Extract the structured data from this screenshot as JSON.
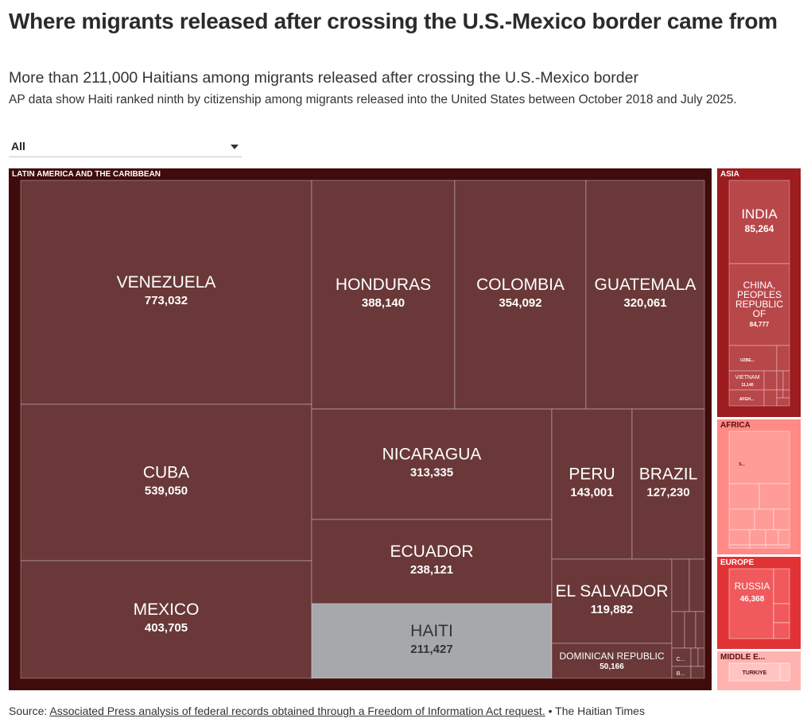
{
  "title": "Where migrants released after crossing the U.S.-Mexico border came from",
  "subtitle": "More than 211,000 Haitians among migrants released after crossing the U.S.-Mexico border",
  "description": "AP data show Haiti ranked ninth by citizenship among migrants released into the United States between October 2018 and July 2025.",
  "filter": {
    "selected": "All",
    "icon": "chevron-down-icon"
  },
  "footer": {
    "prefix": "Source: ",
    "link_text": "Associated Press analysis of federal records obtained through a Freedom of Information Act request.",
    "suffix": " • The Haitian Times"
  },
  "colors": {
    "latin_bg": "#3f0b0b",
    "latin_tile": "#6a3838",
    "highlight": "#a6a8ab",
    "asia_bg": "#9c1c1f",
    "asia_tile": "#b8474a",
    "africa_bg": "#ff8a86",
    "africa_tile": "#ff9c98",
    "europe_bg": "#e13336",
    "europe_tile": "#f05a5c",
    "middle_east_bg": "#ffb3b1",
    "middle_east_tile": "#ffc4c2"
  },
  "chart_data": {
    "type": "treemap",
    "highlight": "HAITI",
    "regions": [
      {
        "name": "LATIN AMERICA AND THE CARIBBEAN",
        "items": [
          {
            "label": "VENEZUELA",
            "value": 773032,
            "value_label": "773,032"
          },
          {
            "label": "CUBA",
            "value": 539050,
            "value_label": "539,050"
          },
          {
            "label": "MEXICO",
            "value": 403705,
            "value_label": "403,705"
          },
          {
            "label": "HONDURAS",
            "value": 388140,
            "value_label": "388,140"
          },
          {
            "label": "COLOMBIA",
            "value": 354092,
            "value_label": "354,092"
          },
          {
            "label": "GUATEMALA",
            "value": 320061,
            "value_label": "320,061"
          },
          {
            "label": "NICARAGUA",
            "value": 313335,
            "value_label": "313,335"
          },
          {
            "label": "ECUADOR",
            "value": 238121,
            "value_label": "238,121"
          },
          {
            "label": "HAITI",
            "value": 211427,
            "value_label": "211,427"
          },
          {
            "label": "PERU",
            "value": 143001,
            "value_label": "143,001"
          },
          {
            "label": "BRAZIL",
            "value": 127230,
            "value_label": "127,230"
          },
          {
            "label": "EL SALVADOR",
            "value": 119882,
            "value_label": "119,882"
          },
          {
            "label": "DOMINICAN REPUBLIC",
            "value": 50166,
            "value_label": "50,166"
          },
          {
            "label": "C...",
            "value_label": ""
          },
          {
            "label": "B...",
            "value_label": ""
          }
        ]
      },
      {
        "name": "ASIA",
        "items": [
          {
            "label": "INDIA",
            "value": 85264,
            "value_label": "85,264"
          },
          {
            "label": "CHINA, PEOPLES REPUBLIC OF",
            "value": 84777,
            "value_label": "84,777"
          },
          {
            "label": "UZBE...",
            "value_label": ""
          },
          {
            "label": "VIETNAM",
            "value": 11140,
            "value_label": "11,140"
          },
          {
            "label": "AFGH...",
            "value_label": ""
          }
        ]
      },
      {
        "name": "AFRICA",
        "items": [
          {
            "label": "S...",
            "value_label": ""
          }
        ]
      },
      {
        "name": "EUROPE",
        "items": [
          {
            "label": "RUSSIA",
            "value": 46368,
            "value_label": "46,368"
          }
        ]
      },
      {
        "name": "MIDDLE E...",
        "items": [
          {
            "label": "TURKIYE",
            "value_label": ""
          }
        ]
      }
    ]
  }
}
